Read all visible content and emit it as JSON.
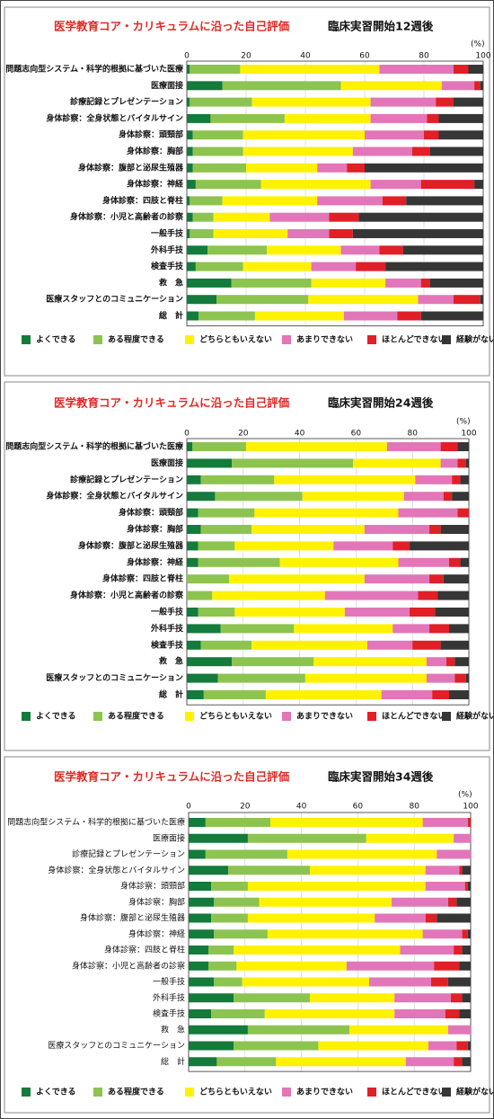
{
  "chart_data": [
    {
      "type": "stacked-bar-horizontal",
      "title": "医学教育コア・カリキュラムに沿った自己評価",
      "subtitle": "臨床実習開始12週後",
      "xlabel": "(%)",
      "xlim": [
        0,
        100
      ],
      "xticks": [
        0,
        20,
        40,
        60,
        80,
        100
      ],
      "grid": true,
      "legend": "bottom",
      "categories": [
        "問題志向型システム・科学的根拠に基づいた医療",
        "医療面接",
        "診療記録とプレゼンテーション",
        "身体診察：全身状態とバイタルサイン",
        "身体診察：頭頸部",
        "身体診察：胸部",
        "身体診察：腹部と泌尿生殖器",
        "身体診察：神経",
        "身体診察：四肢と脊柱",
        "身体診察：小児と高齢者の診察",
        "一般手技",
        "外科手技",
        "検査手技",
        "救　急",
        "医療スタッフとのコミュニケーション",
        "総　計"
      ],
      "series": [
        {
          "name": "よくできる",
          "color": "#137b3b",
          "values": [
            1,
            12,
            1,
            8,
            2,
            2,
            2,
            3,
            1,
            2,
            1,
            7,
            3,
            15,
            10,
            4
          ]
        },
        {
          "name": "ある程度できる",
          "color": "#8cc44f",
          "values": [
            17,
            40,
            21,
            25,
            17,
            17,
            18,
            22,
            11,
            7,
            8,
            20,
            16,
            27,
            31,
            19
          ]
        },
        {
          "name": "どちらともいえない",
          "color": "#fff200",
          "values": [
            47,
            34,
            40,
            29,
            41,
            37,
            24,
            37,
            32,
            19,
            25,
            25,
            23,
            25,
            37,
            30
          ]
        },
        {
          "name": "あまりできない",
          "color": "#e276b9",
          "values": [
            25,
            11,
            22,
            19,
            20,
            20,
            10,
            17,
            22,
            20,
            14,
            13,
            15,
            12,
            12,
            18
          ]
        },
        {
          "name": "ほとんどできない",
          "color": "#e11f26",
          "values": [
            5,
            2,
            6,
            4,
            5,
            6,
            6,
            18,
            8,
            10,
            8,
            8,
            10,
            3,
            9,
            8
          ]
        },
        {
          "name": "経験がない",
          "color": "#363636",
          "values": [
            5,
            1,
            10,
            15,
            15,
            18,
            40,
            3,
            26,
            42,
            44,
            27,
            33,
            18,
            1,
            21
          ]
        }
      ]
    },
    {
      "type": "stacked-bar-horizontal",
      "title": "医学教育コア・カリキュラムに沿った自己評価",
      "subtitle": "臨床実習開始24週後",
      "xlabel": "(%)",
      "xlim": [
        0,
        100
      ],
      "xticks": [
        0,
        20,
        40,
        60,
        80,
        100
      ],
      "grid": true,
      "legend": "bottom",
      "categories": [
        "問題志向型システム・科学的根拠に基づいた医療",
        "医療面接",
        "診療記録とプレゼンテーション",
        "身体診察：全身状態とバイタルサイン",
        "身体診察：頭頸部",
        "身体診察：胸部",
        "身体診察：腹部と泌尿生殖器",
        "身体診察：神経",
        "身体診察：四肢と脊柱",
        "身体診察：小児と高齢者の診察",
        "一般手技",
        "外科手技",
        "検査手技",
        "救　急",
        "医療スタッフとのコミュニケーション",
        "総　計"
      ],
      "series": [
        {
          "name": "よくできる",
          "color": "#137b3b",
          "values": [
            2,
            16,
            5,
            10,
            4,
            5,
            4,
            4,
            0,
            0,
            4,
            12,
            5,
            16,
            11,
            6
          ]
        },
        {
          "name": "ある程度できる",
          "color": "#8cc44f",
          "values": [
            19,
            43,
            26,
            31,
            20,
            18,
            13,
            29,
            15,
            9,
            13,
            26,
            18,
            29,
            31,
            22
          ]
        },
        {
          "name": "どちらともいえない",
          "color": "#fff200",
          "values": [
            50,
            31,
            50,
            36,
            51,
            40,
            35,
            42,
            48,
            40,
            39,
            35,
            41,
            40,
            43,
            41
          ]
        },
        {
          "name": "あまりできない",
          "color": "#e276b9",
          "values": [
            19,
            6,
            13,
            14,
            21,
            23,
            21,
            18,
            23,
            33,
            23,
            13,
            16,
            7,
            10,
            18
          ]
        },
        {
          "name": "ほとんどできない",
          "color": "#e11f26",
          "values": [
            6,
            3,
            3,
            3,
            4,
            4,
            6,
            4,
            5,
            7,
            9,
            7,
            10,
            3,
            4,
            6
          ]
        },
        {
          "name": "経験がない",
          "color": "#363636",
          "values": [
            4,
            1,
            3,
            6,
            0,
            10,
            21,
            3,
            9,
            11,
            12,
            7,
            10,
            5,
            1,
            7
          ]
        }
      ]
    },
    {
      "type": "stacked-bar-horizontal",
      "title": "医学教育コア・カリキュラムに沿った自己評価",
      "subtitle": "臨床実習開始34週後",
      "xlabel": "(%)",
      "xlim": [
        0,
        100
      ],
      "xticks": [
        0,
        20,
        40,
        60,
        80,
        100
      ],
      "grid": true,
      "legend": "bottom",
      "categories": [
        "問題志向型システム・科学的根拠に基づいた医療",
        "医療面接",
        "診療記録とプレゼンテーション",
        "身体診察：全身状態とバイタルサイン",
        "身体診察：頭頸部",
        "身体診察：胸部",
        "身体診察：腹部と泌尿生殖器",
        "身体診察：神経",
        "身体診察：四肢と脊柱",
        "身体診察：小児と高齢者の診察",
        "一般手技",
        "外科手技",
        "検査手技",
        "救　急",
        "医療スタッフとのコミュニケーション",
        "総　計"
      ],
      "series": [
        {
          "name": "よくできる",
          "color": "#137b3b",
          "values": [
            6,
            21,
            6,
            14,
            8,
            9,
            8,
            9,
            7,
            7,
            9,
            16,
            8,
            21,
            16,
            10
          ]
        },
        {
          "name": "ある程度できる",
          "color": "#8cc44f",
          "values": [
            23,
            42,
            29,
            29,
            13,
            16,
            13,
            19,
            9,
            10,
            10,
            27,
            19,
            36,
            30,
            21
          ]
        },
        {
          "name": "どちらともいえない",
          "color": "#fff200",
          "values": [
            54,
            31,
            53,
            41,
            63,
            47,
            45,
            55,
            59,
            39,
            45,
            30,
            46,
            35,
            39,
            46
          ]
        },
        {
          "name": "あまりできない",
          "color": "#e276b9",
          "values": [
            16,
            6,
            12,
            12,
            14,
            20,
            18,
            14,
            19,
            31,
            22,
            20,
            18,
            8,
            10,
            17
          ]
        },
        {
          "name": "ほとんどできない",
          "color": "#e11f26",
          "values": [
            1,
            0,
            0,
            1,
            1,
            3,
            4,
            2,
            3,
            9,
            6,
            4,
            5,
            0,
            4,
            3
          ]
        },
        {
          "name": "経験がない",
          "color": "#363636",
          "values": [
            0,
            0,
            0,
            3,
            1,
            5,
            12,
            1,
            3,
            4,
            8,
            3,
            4,
            0,
            1,
            3
          ]
        }
      ]
    }
  ]
}
